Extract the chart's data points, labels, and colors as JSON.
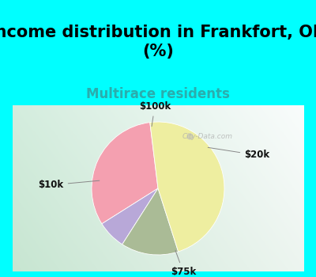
{
  "title": "Income distribution in Frankfort, OH\n(%)",
  "subtitle": "Multirace residents",
  "labels": [
    "$10k",
    "$100k",
    "$20k",
    "$75k"
  ],
  "sizes": [
    32,
    7,
    14,
    47
  ],
  "colors": [
    "#F4A0B0",
    "#B8A8D8",
    "#AABB96",
    "#EEEEA0"
  ],
  "start_angle": 97,
  "outer_bg": "#00FFFF",
  "chart_bg_left": "#C8E8D8",
  "chart_bg_right": "#E0F0E8",
  "title_fontsize": 15,
  "subtitle_fontsize": 12,
  "subtitle_color": "#2AADAD",
  "label_fontsize": 8.5,
  "watermark": "City-Data.com"
}
